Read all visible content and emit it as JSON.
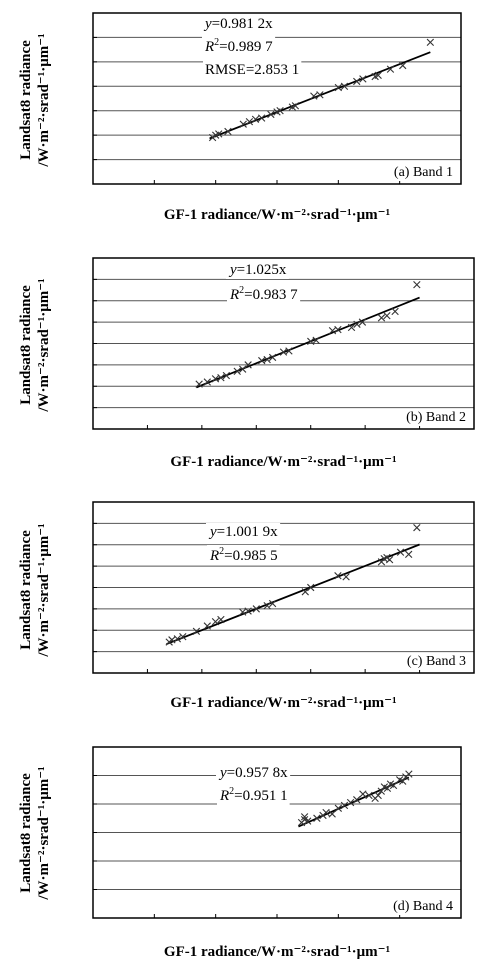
{
  "chart_data": [
    {
      "type": "scatter",
      "panel_label": "(a)  Band  1",
      "equation": {
        "prefix": "y",
        "text": "=0.981 2x"
      },
      "r2": {
        "base": "R",
        "sup": "2",
        "text": "=0.989 7"
      },
      "rmse": "RMSE=2.853 1",
      "xlabel": "GF-1 radiance/W·m⁻²·srad⁻¹·μm⁻¹",
      "ylabel_lines": [
        "Landsat8 radiance",
        "/W·m⁻²·srad⁻¹·μm⁻¹"
      ],
      "xlim": [
        0,
        120
      ],
      "ylim": [
        0,
        140
      ],
      "xticks": [
        "0",
        "20",
        "40",
        "60",
        "80",
        "100",
        "120"
      ],
      "yticks": [
        "0",
        "20",
        "40",
        "60",
        "80",
        "100",
        "120",
        "140"
      ],
      "slope": 0.9812,
      "fit_x": [
        38,
        110
      ],
      "points": [
        [
          39,
          38
        ],
        [
          40,
          40
        ],
        [
          41,
          41
        ],
        [
          44,
          43
        ],
        [
          49,
          49
        ],
        [
          51,
          51
        ],
        [
          53,
          53
        ],
        [
          55,
          54
        ],
        [
          58,
          57
        ],
        [
          60,
          59
        ],
        [
          61,
          60
        ],
        [
          65,
          63
        ],
        [
          66,
          64
        ],
        [
          72,
          72
        ],
        [
          74,
          73
        ],
        [
          80,
          79
        ],
        [
          82,
          80
        ],
        [
          86,
          84
        ],
        [
          88,
          86
        ],
        [
          92,
          88
        ],
        [
          93,
          89
        ],
        [
          97,
          94
        ],
        [
          101,
          97
        ],
        [
          110,
          116
        ]
      ]
    },
    {
      "type": "scatter",
      "panel_label": "(b)  Band  2",
      "equation": {
        "prefix": "y",
        "text": "=1.025x"
      },
      "r2": {
        "base": "R",
        "sup": "2",
        "text": "=0.983 7"
      },
      "rmse": "",
      "xlabel": "GF-1 radiance/W·m⁻²·srad⁻¹·μm⁻¹",
      "ylabel_lines": [
        "Landsat8 radiance",
        "/W·m⁻²·srad⁻¹·μm⁻¹"
      ],
      "xlim": [
        0,
        140
      ],
      "ylim": [
        0,
        160
      ],
      "xticks": [
        "0",
        "20",
        "40",
        "60",
        "80",
        "100",
        "120",
        "140"
      ],
      "yticks": [
        "0",
        "20",
        "40",
        "60",
        "80",
        "100",
        "120",
        "140",
        "160"
      ],
      "slope": 1.025,
      "fit_x": [
        38,
        120
      ],
      "points": [
        [
          39,
          42
        ],
        [
          42,
          44
        ],
        [
          45,
          47
        ],
        [
          47,
          48
        ],
        [
          49,
          50
        ],
        [
          53,
          54
        ],
        [
          55,
          56
        ],
        [
          57,
          60
        ],
        [
          62,
          64
        ],
        [
          64,
          65
        ],
        [
          66,
          67
        ],
        [
          70,
          72
        ],
        [
          72,
          73
        ],
        [
          80,
          82
        ],
        [
          82,
          83
        ],
        [
          88,
          92
        ],
        [
          90,
          93
        ],
        [
          95,
          95
        ],
        [
          97,
          98
        ],
        [
          99,
          100
        ],
        [
          106,
          104
        ],
        [
          108,
          106
        ],
        [
          111,
          110
        ],
        [
          119,
          135
        ]
      ]
    },
    {
      "type": "scatter",
      "panel_label": "(c)  Band  3",
      "equation": {
        "prefix": "y",
        "text": "=1.001 9x"
      },
      "r2": {
        "base": "R",
        "sup": "2",
        "text": "=0.985 5"
      },
      "rmse": "",
      "xlabel": "GF-1 radiance/W·m⁻²·srad⁻¹·μm⁻¹",
      "ylabel_lines": [
        "Landsat8 radiance",
        "/W·m⁻²·srad⁻¹·μm⁻¹"
      ],
      "xlim": [
        0,
        140
      ],
      "ylim": [
        0,
        160
      ],
      "xticks": [
        "0",
        "20",
        "40",
        "60",
        "80",
        "100",
        "120",
        "140"
      ],
      "yticks": [
        "0",
        "20",
        "40",
        "60",
        "80",
        "100",
        "120",
        "140",
        "160"
      ],
      "slope": 1.0019,
      "fit_x": [
        27,
        120
      ],
      "points": [
        [
          28,
          29
        ],
        [
          29,
          31
        ],
        [
          31,
          32
        ],
        [
          33,
          34
        ],
        [
          38,
          39
        ],
        [
          42,
          44
        ],
        [
          45,
          48
        ],
        [
          47,
          50
        ],
        [
          55,
          57
        ],
        [
          57,
          58
        ],
        [
          60,
          60
        ],
        [
          64,
          63
        ],
        [
          66,
          65
        ],
        [
          78,
          76
        ],
        [
          80,
          80
        ],
        [
          90,
          91
        ],
        [
          93,
          90
        ],
        [
          106,
          104
        ],
        [
          107,
          107
        ],
        [
          108,
          108
        ],
        [
          109,
          106
        ],
        [
          113,
          113
        ],
        [
          116,
          111
        ],
        [
          119,
          136
        ]
      ]
    },
    {
      "type": "scatter",
      "panel_label": "(d)  Band  4",
      "equation": {
        "prefix": "y",
        "text": "=0.957 8x"
      },
      "r2": {
        "base": "R",
        "sup": "2",
        "text": "=0.951 1"
      },
      "rmse": "",
      "xlabel": "GF-1 radiance/W·m⁻²·srad⁻¹·μm⁻¹",
      "ylabel_lines": [
        "Landsat8 radiance",
        "/W·m⁻²·srad⁻¹·μm⁻¹"
      ],
      "xlim": [
        0,
        120
      ],
      "ylim": [
        0,
        120
      ],
      "xticks": [
        "0",
        "20",
        "40",
        "60",
        "80",
        "100",
        "120"
      ],
      "yticks": [
        "0",
        "20",
        "40",
        "60",
        "80",
        "100",
        "120"
      ],
      "slope": 0.9578,
      "fit_x": [
        67,
        103
      ],
      "points": [
        [
          68,
          67
        ],
        [
          69,
          69
        ],
        [
          69,
          71
        ],
        [
          70,
          68
        ],
        [
          73,
          70
        ],
        [
          75,
          72
        ],
        [
          76,
          74
        ],
        [
          78,
          73
        ],
        [
          80,
          77
        ],
        [
          82,
          79
        ],
        [
          84,
          81
        ],
        [
          86,
          83
        ],
        [
          88,
          87
        ],
        [
          90,
          86
        ],
        [
          92,
          84
        ],
        [
          93,
          86
        ],
        [
          94,
          89
        ],
        [
          95,
          92
        ],
        [
          96,
          91
        ],
        [
          97,
          94
        ],
        [
          98,
          93
        ],
        [
          100,
          97
        ],
        [
          101,
          96
        ],
        [
          102,
          99
        ],
        [
          103,
          101
        ]
      ]
    }
  ]
}
